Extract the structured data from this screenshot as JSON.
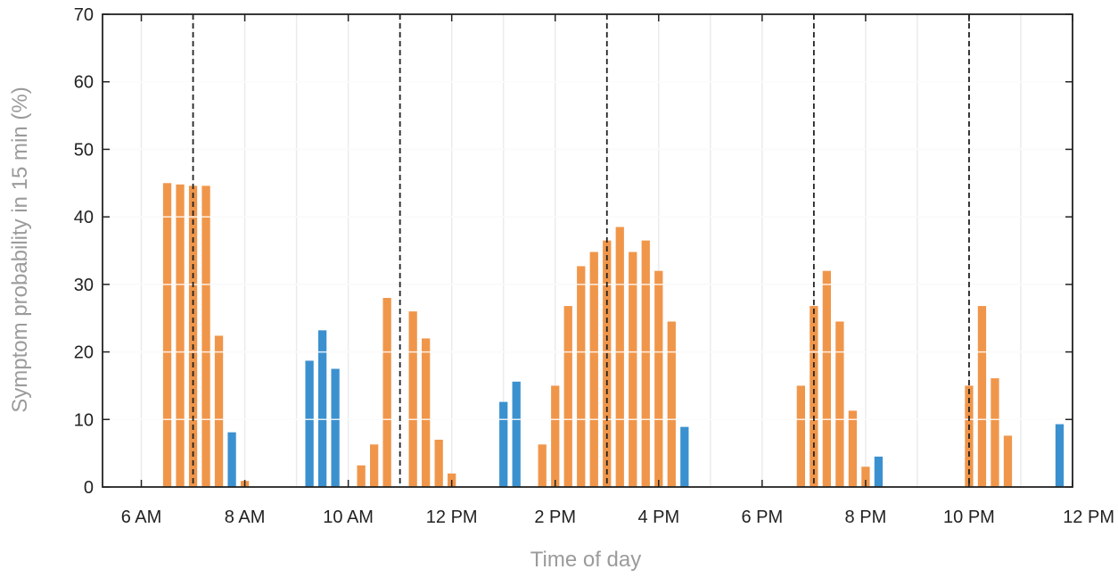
{
  "chart_data": {
    "type": "bar",
    "xlabel": "Time of day",
    "ylabel": "Symptom probability in 15 min (%)",
    "ylim": [
      0,
      70
    ],
    "yticks": [
      0,
      10,
      20,
      30,
      40,
      50,
      60,
      70
    ],
    "xlim_hours": [
      5.25,
      24
    ],
    "xticks": [
      {
        "hour": 6,
        "label": "6 AM"
      },
      {
        "hour": 8,
        "label": "8 AM"
      },
      {
        "hour": 10,
        "label": "10 AM"
      },
      {
        "hour": 12,
        "label": "12 PM"
      },
      {
        "hour": 14,
        "label": "2 PM"
      },
      {
        "hour": 16,
        "label": "4 PM"
      },
      {
        "hour": 18,
        "label": "6 PM"
      },
      {
        "hour": 20,
        "label": "8 PM"
      },
      {
        "hour": 22,
        "label": "10 PM"
      },
      {
        "hour": 24,
        "label": "12 PM"
      }
    ],
    "grid": true,
    "dashed_vlines_hours": [
      7,
      11,
      15,
      19,
      22
    ],
    "bar_width_hours": 0.16,
    "colors": {
      "orange": "#f0964a",
      "blue": "#3b91cf"
    },
    "bars": [
      {
        "hour": 6.5,
        "value": 45.0,
        "color": "orange"
      },
      {
        "hour": 6.75,
        "value": 44.8,
        "color": "orange"
      },
      {
        "hour": 7.0,
        "value": 44.6,
        "color": "orange"
      },
      {
        "hour": 7.25,
        "value": 44.6,
        "color": "orange"
      },
      {
        "hour": 7.5,
        "value": 22.4,
        "color": "orange"
      },
      {
        "hour": 7.75,
        "value": 8.1,
        "color": "blue"
      },
      {
        "hour": 8.0,
        "value": 0.9,
        "color": "orange"
      },
      {
        "hour": 9.25,
        "value": 18.7,
        "color": "blue"
      },
      {
        "hour": 9.5,
        "value": 23.2,
        "color": "blue"
      },
      {
        "hour": 9.75,
        "value": 17.5,
        "color": "blue"
      },
      {
        "hour": 10.25,
        "value": 3.2,
        "color": "orange"
      },
      {
        "hour": 10.5,
        "value": 6.3,
        "color": "orange"
      },
      {
        "hour": 10.75,
        "value": 28.0,
        "color": "orange"
      },
      {
        "hour": 11.25,
        "value": 26.0,
        "color": "orange"
      },
      {
        "hour": 11.5,
        "value": 22.0,
        "color": "orange"
      },
      {
        "hour": 11.75,
        "value": 7.0,
        "color": "orange"
      },
      {
        "hour": 12.0,
        "value": 2.0,
        "color": "orange"
      },
      {
        "hour": 13.0,
        "value": 12.6,
        "color": "blue"
      },
      {
        "hour": 13.25,
        "value": 15.6,
        "color": "blue"
      },
      {
        "hour": 13.75,
        "value": 6.3,
        "color": "orange"
      },
      {
        "hour": 14.0,
        "value": 15.0,
        "color": "orange"
      },
      {
        "hour": 14.25,
        "value": 26.8,
        "color": "orange"
      },
      {
        "hour": 14.5,
        "value": 32.7,
        "color": "orange"
      },
      {
        "hour": 14.75,
        "value": 34.8,
        "color": "orange"
      },
      {
        "hour": 15.0,
        "value": 36.5,
        "color": "orange"
      },
      {
        "hour": 15.25,
        "value": 38.5,
        "color": "orange"
      },
      {
        "hour": 15.5,
        "value": 34.8,
        "color": "orange"
      },
      {
        "hour": 15.75,
        "value": 36.5,
        "color": "orange"
      },
      {
        "hour": 16.0,
        "value": 32.0,
        "color": "orange"
      },
      {
        "hour": 16.25,
        "value": 24.5,
        "color": "orange"
      },
      {
        "hour": 16.5,
        "value": 8.9,
        "color": "blue"
      },
      {
        "hour": 18.75,
        "value": 15.0,
        "color": "orange"
      },
      {
        "hour": 19.0,
        "value": 26.8,
        "color": "orange"
      },
      {
        "hour": 19.25,
        "value": 32.0,
        "color": "orange"
      },
      {
        "hour": 19.5,
        "value": 24.5,
        "color": "orange"
      },
      {
        "hour": 19.75,
        "value": 11.3,
        "color": "orange"
      },
      {
        "hour": 20.0,
        "value": 3.0,
        "color": "orange"
      },
      {
        "hour": 20.25,
        "value": 4.5,
        "color": "blue"
      },
      {
        "hour": 22.0,
        "value": 15.0,
        "color": "orange"
      },
      {
        "hour": 22.25,
        "value": 26.8,
        "color": "orange"
      },
      {
        "hour": 22.5,
        "value": 16.1,
        "color": "orange"
      },
      {
        "hour": 22.75,
        "value": 7.6,
        "color": "orange"
      },
      {
        "hour": 23.75,
        "value": 9.3,
        "color": "blue"
      }
    ]
  }
}
